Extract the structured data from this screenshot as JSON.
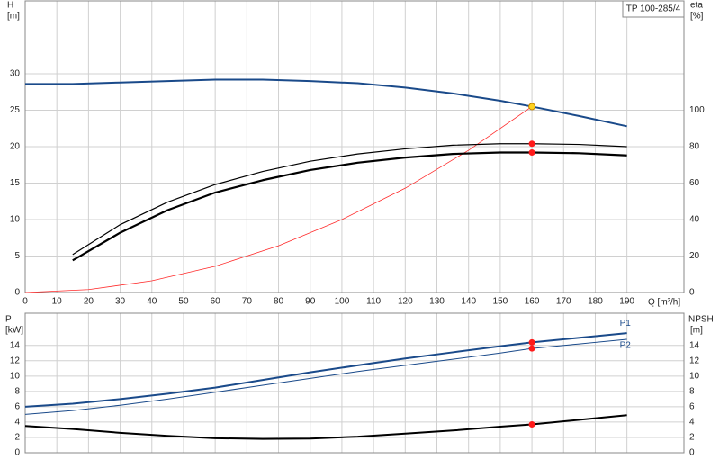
{
  "chart_data": [
    {
      "type": "line",
      "label": "TP 100-285/4",
      "y_label": "H",
      "y_unit": "[m]",
      "y2_label": "eta",
      "y2_unit": "[%]",
      "x_label": "Q [m³/h]",
      "xlim": [
        0,
        208
      ],
      "xticks": [
        0,
        10,
        20,
        30,
        40,
        50,
        60,
        70,
        80,
        90,
        100,
        110,
        120,
        130,
        140,
        150,
        160,
        170,
        180,
        190
      ],
      "ylim": [
        0,
        40
      ],
      "yticks": [
        0,
        5,
        10,
        15,
        20,
        25,
        30
      ],
      "y2lim": [
        0,
        160
      ],
      "y2ticks": [
        0,
        20,
        40,
        60,
        80,
        100
      ],
      "grid": true,
      "operating_x": 160,
      "series": [
        {
          "color": "#1a4a8a",
          "width": 2,
          "point_color": "#ffd21f",
          "x": [
            0,
            15,
            30,
            45,
            60,
            75,
            90,
            105,
            120,
            135,
            150,
            160,
            175,
            190
          ],
          "values": [
            28.6,
            28.6,
            28.8,
            29.0,
            29.2,
            29.2,
            29.0,
            28.7,
            28.1,
            27.3,
            26.3,
            25.5,
            24.2,
            22.8
          ]
        },
        {
          "color": "#ff2a2a",
          "width": 0.8,
          "x": [
            0,
            20,
            40,
            60,
            80,
            100,
            120,
            140,
            160
          ],
          "values": [
            0,
            0.4,
            1.6,
            3.6,
            6.4,
            10.0,
            14.3,
            19.5,
            25.5
          ]
        },
        {
          "color": "#000000",
          "width": 1.2,
          "axis": "y2",
          "point_color": "#ff1a1a",
          "x": [
            15,
            30,
            45,
            60,
            75,
            90,
            105,
            120,
            135,
            150,
            160,
            175,
            190
          ],
          "values": [
            20.8,
            37.2,
            49.6,
            59.2,
            66.4,
            72,
            76,
            78.8,
            80.8,
            81.6,
            81.6,
            81.2,
            80
          ]
        },
        {
          "color": "#000000",
          "width": 2.2,
          "axis": "y2",
          "point_color": "#ff1a1a",
          "x": [
            15,
            30,
            45,
            60,
            75,
            90,
            105,
            120,
            135,
            150,
            160,
            175,
            190
          ],
          "values": [
            17.6,
            32.8,
            45.2,
            54.8,
            61.6,
            67.2,
            71.2,
            74,
            76,
            76.8,
            76.8,
            76.4,
            75.2
          ]
        }
      ]
    },
    {
      "type": "line",
      "y_label": "P",
      "y_unit": "[kW]",
      "y2_label": "NPSH",
      "y2_unit": "[m]",
      "xlim": [
        0,
        208
      ],
      "ylim": [
        0,
        18.2
      ],
      "yticks": [
        0,
        2,
        4,
        6,
        8,
        10,
        12,
        14
      ],
      "y2lim": [
        0,
        18.2
      ],
      "y2ticks": [
        0,
        2,
        4,
        6,
        8,
        10,
        12,
        14
      ],
      "grid": true,
      "operating_x": 160,
      "series": [
        {
          "name": "P1",
          "color": "#1a4a8a",
          "width": 2,
          "point_color": "#ff1a1a",
          "x": [
            0,
            15,
            30,
            45,
            60,
            75,
            90,
            105,
            120,
            135,
            150,
            160,
            175,
            190
          ],
          "values": [
            6.0,
            6.4,
            7.0,
            7.7,
            8.5,
            9.5,
            10.5,
            11.4,
            12.3,
            13.1,
            13.9,
            14.4,
            15.0,
            15.6
          ]
        },
        {
          "name": "P2",
          "color": "#1a4a8a",
          "width": 1,
          "point_color": "#ff1a1a",
          "x": [
            0,
            15,
            30,
            45,
            60,
            75,
            90,
            105,
            120,
            135,
            150,
            160,
            175,
            190
          ],
          "values": [
            5.0,
            5.5,
            6.2,
            7.0,
            7.9,
            8.8,
            9.7,
            10.6,
            11.4,
            12.2,
            13.0,
            13.6,
            14.2,
            14.8
          ]
        },
        {
          "color": "#000000",
          "width": 2,
          "axis": "y2",
          "point_color": "#ff1a1a",
          "x": [
            0,
            15,
            30,
            45,
            60,
            75,
            90,
            105,
            120,
            135,
            150,
            160,
            175,
            190
          ],
          "values": [
            3.5,
            3.1,
            2.6,
            2.2,
            1.9,
            1.8,
            1.85,
            2.1,
            2.5,
            2.9,
            3.4,
            3.7,
            4.3,
            4.9
          ]
        }
      ]
    }
  ]
}
